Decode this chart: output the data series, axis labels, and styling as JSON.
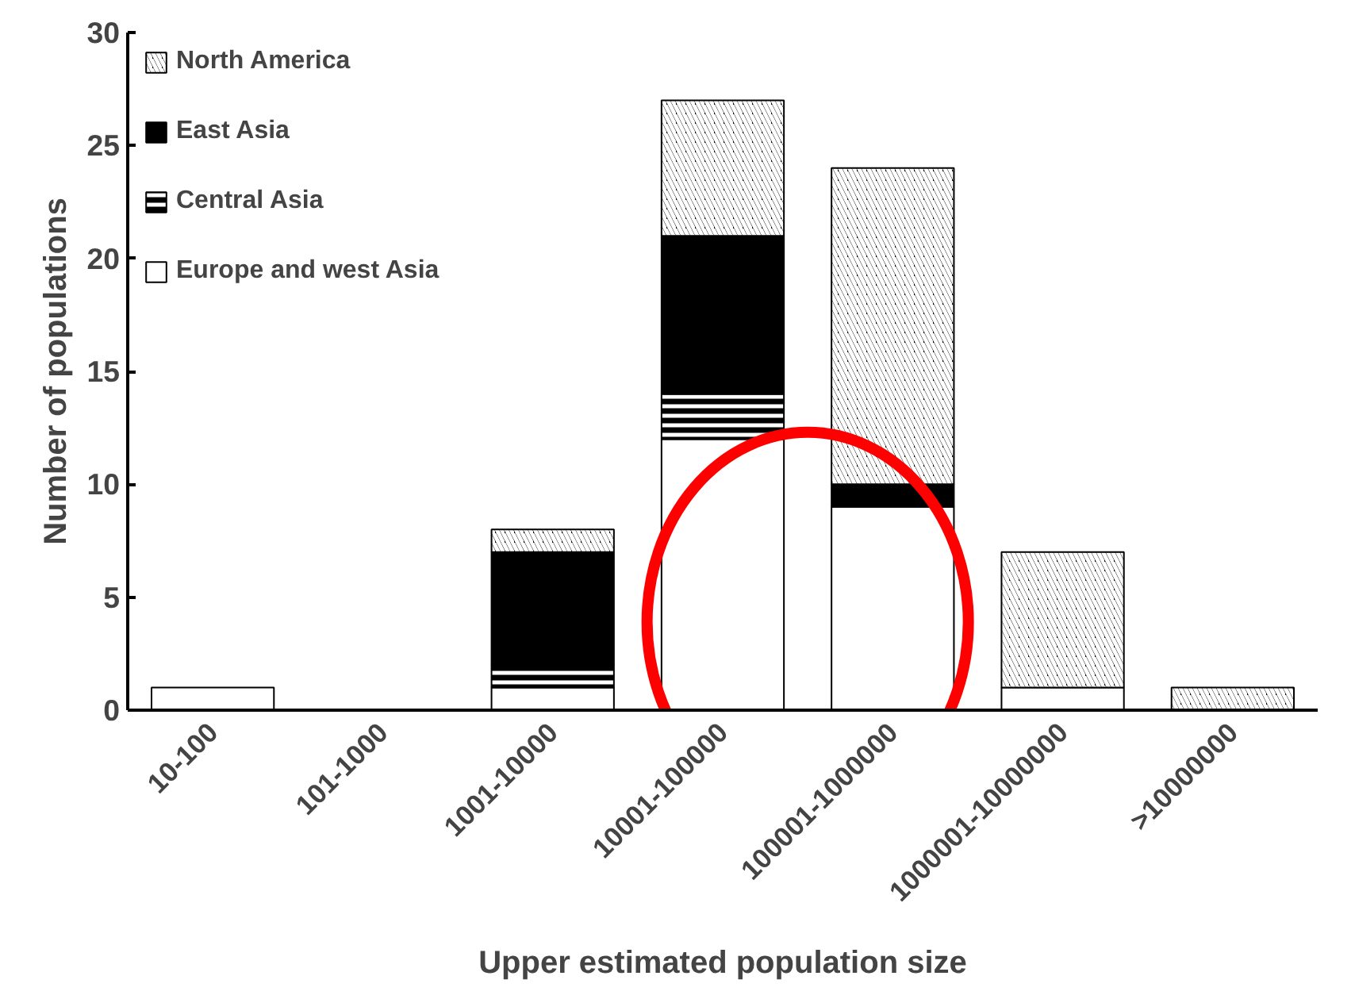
{
  "chart_data": {
    "type": "bar",
    "stacked": true,
    "xlabel": "Upper estimated population size",
    "ylabel": "Number of populations",
    "categories": [
      "10-100",
      "101-1000",
      "1001-10000",
      "10001-100000",
      "100001-1000000",
      "1000001-10000000",
      ">10000000"
    ],
    "series": [
      {
        "name": "Europe and west Asia",
        "color": "#ffffff",
        "values": [
          1,
          0,
          1,
          12,
          9,
          1,
          0
        ]
      },
      {
        "name": "Central Asia",
        "color": "#000000",
        "values": [
          0,
          0,
          1,
          2,
          0,
          0,
          0
        ]
      },
      {
        "name": "East Asia",
        "color": "#000000",
        "values": [
          0,
          0,
          5,
          7,
          1,
          0,
          0
        ]
      },
      {
        "name": "North America",
        "color": "#000000",
        "values": [
          0,
          0,
          1,
          6,
          14,
          6,
          1
        ]
      }
    ],
    "ylim": [
      0,
      30
    ],
    "yticks": [
      0,
      5,
      10,
      15,
      20,
      25,
      30
    ],
    "grid": false,
    "legend": "top left"
  }
}
